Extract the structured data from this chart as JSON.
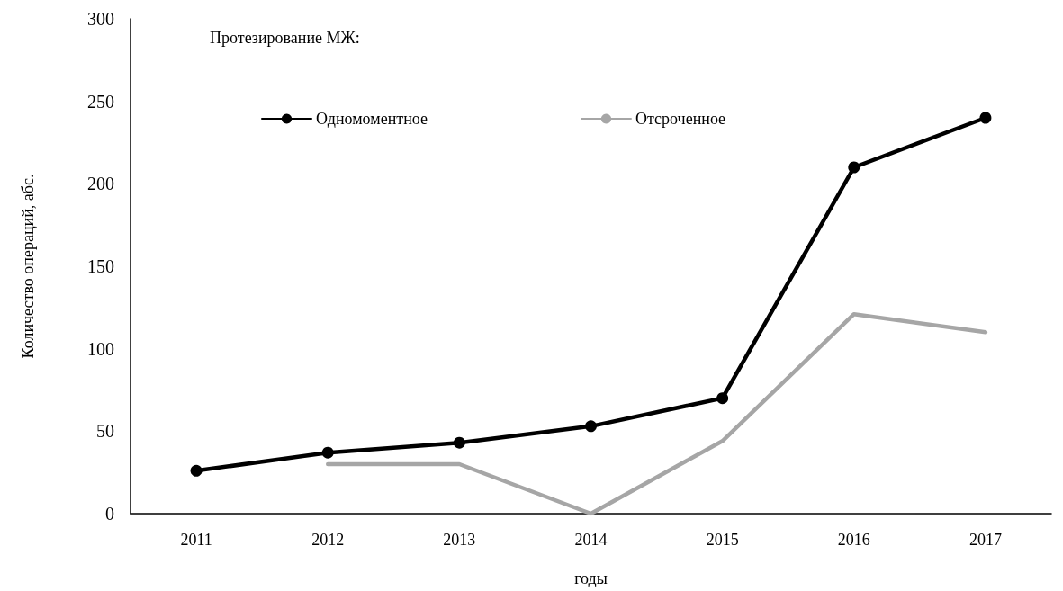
{
  "chart_data": {
    "type": "line",
    "legend_title": "Протезирование МЖ:",
    "xlabel": "годы",
    "ylabel": "Количество операций, абс.",
    "categories": [
      "2011",
      "2012",
      "2013",
      "2014",
      "2015",
      "2016",
      "2017"
    ],
    "series": [
      {
        "name": "Одномоментное",
        "color": "#000000",
        "marker": "circle",
        "values": [
          26,
          37,
          43,
          53,
          70,
          210,
          240
        ]
      },
      {
        "name": "Отсроченное",
        "color": "#a6a6a6",
        "marker": "none",
        "values": [
          null,
          30,
          30,
          0,
          44,
          121,
          110
        ]
      }
    ],
    "ylim": [
      0,
      300
    ],
    "yticks": [
      0,
      50,
      100,
      150,
      200,
      250,
      300
    ],
    "grid": false,
    "legend": "top",
    "line_style": "solid"
  }
}
